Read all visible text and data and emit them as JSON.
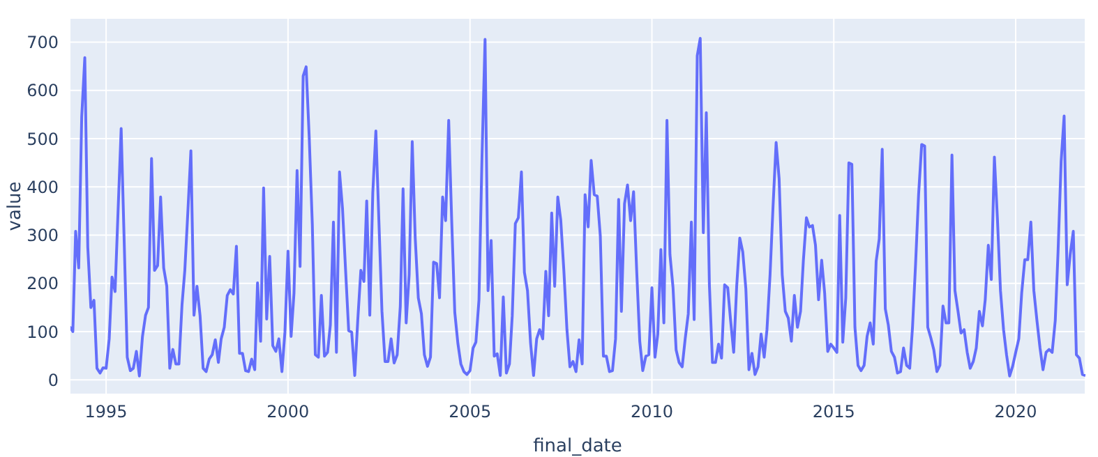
{
  "chart_data": {
    "type": "line",
    "xlabel": "final_date",
    "ylabel": "value",
    "x": [
      "1994-01",
      "1994-02",
      "1994-03",
      "1994-04",
      "1994-05",
      "1994-06",
      "1994-07",
      "1994-08",
      "1994-09",
      "1994-10",
      "1994-11",
      "1994-12",
      "1995-01",
      "1995-02",
      "1995-03",
      "1995-04",
      "1995-05",
      "1995-06",
      "1995-07",
      "1995-08",
      "1995-09",
      "1995-10",
      "1995-11",
      "1995-12",
      "1996-01",
      "1996-02",
      "1996-03",
      "1996-04",
      "1996-05",
      "1996-06",
      "1996-07",
      "1996-08",
      "1996-09",
      "1996-10",
      "1996-11",
      "1996-12",
      "1997-01",
      "1997-02",
      "1997-03",
      "1997-04",
      "1997-05",
      "1997-06",
      "1997-07",
      "1997-08",
      "1997-09",
      "1997-10",
      "1997-11",
      "1997-12",
      "1998-01",
      "1998-02",
      "1998-03",
      "1998-04",
      "1998-05",
      "1998-06",
      "1998-07",
      "1998-08",
      "1998-09",
      "1998-10",
      "1998-11",
      "1998-12",
      "1999-01",
      "1999-02",
      "1999-03",
      "1999-04",
      "1999-05",
      "1999-06",
      "1999-07",
      "1999-08",
      "1999-09",
      "1999-10",
      "1999-11",
      "1999-12",
      "2000-01",
      "2000-02",
      "2000-03",
      "2000-04",
      "2000-05",
      "2000-06",
      "2000-07",
      "2000-08",
      "2000-09",
      "2000-10",
      "2000-11",
      "2000-12",
      "2001-01",
      "2001-02",
      "2001-03",
      "2001-04",
      "2001-05",
      "2001-06",
      "2001-07",
      "2001-08",
      "2001-09",
      "2001-10",
      "2001-11",
      "2001-12",
      "2002-01",
      "2002-02",
      "2002-03",
      "2002-04",
      "2002-05",
      "2002-06",
      "2002-07",
      "2002-08",
      "2002-09",
      "2002-10",
      "2002-11",
      "2002-12",
      "2003-01",
      "2003-02",
      "2003-03",
      "2003-04",
      "2003-05",
      "2003-06",
      "2003-07",
      "2003-08",
      "2003-09",
      "2003-10",
      "2003-11",
      "2003-12",
      "2004-01",
      "2004-02",
      "2004-03",
      "2004-04",
      "2004-05",
      "2004-06",
      "2004-07",
      "2004-08",
      "2004-09",
      "2004-10",
      "2004-11",
      "2004-12",
      "2005-01",
      "2005-02",
      "2005-03",
      "2005-04",
      "2005-05",
      "2005-06",
      "2005-07",
      "2005-08",
      "2005-09",
      "2005-10",
      "2005-11",
      "2005-12",
      "2006-01",
      "2006-02",
      "2006-03",
      "2006-04",
      "2006-05",
      "2006-06",
      "2006-07",
      "2006-08",
      "2006-09",
      "2006-10",
      "2006-11",
      "2006-12",
      "2007-01",
      "2007-02",
      "2007-03",
      "2007-04",
      "2007-05",
      "2007-06",
      "2007-07",
      "2007-08",
      "2007-09",
      "2007-10",
      "2007-11",
      "2007-12",
      "2008-01",
      "2008-02",
      "2008-03",
      "2008-04",
      "2008-05",
      "2008-06",
      "2008-07",
      "2008-08",
      "2008-09",
      "2008-10",
      "2008-11",
      "2008-12",
      "2009-01",
      "2009-02",
      "2009-03",
      "2009-04",
      "2009-05",
      "2009-06",
      "2009-07",
      "2009-08",
      "2009-09",
      "2009-10",
      "2009-11",
      "2009-12",
      "2010-01",
      "2010-02",
      "2010-03",
      "2010-04",
      "2010-05",
      "2010-06",
      "2010-07",
      "2010-08",
      "2010-09",
      "2010-10",
      "2010-11",
      "2010-12",
      "2011-01",
      "2011-02",
      "2011-03",
      "2011-04",
      "2011-05",
      "2011-06",
      "2011-07",
      "2011-08",
      "2011-09",
      "2011-10",
      "2011-11",
      "2011-12",
      "2012-01",
      "2012-02",
      "2012-03",
      "2012-04",
      "2012-05",
      "2012-06",
      "2012-07",
      "2012-08",
      "2012-09",
      "2012-10",
      "2012-11",
      "2012-12",
      "2013-01",
      "2013-02",
      "2013-03",
      "2013-04",
      "2013-05",
      "2013-06",
      "2013-07",
      "2013-08",
      "2013-09",
      "2013-10",
      "2013-11",
      "2013-12",
      "2014-01",
      "2014-02",
      "2014-03",
      "2014-04",
      "2014-05",
      "2014-06",
      "2014-07",
      "2014-08",
      "2014-09",
      "2014-10",
      "2014-11",
      "2014-12",
      "2015-01",
      "2015-02",
      "2015-03",
      "2015-04",
      "2015-05",
      "2015-06",
      "2015-07",
      "2015-08",
      "2015-09",
      "2015-10",
      "2015-11",
      "2015-12",
      "2016-01",
      "2016-02",
      "2016-03",
      "2016-04",
      "2016-05",
      "2016-06",
      "2016-07",
      "2016-08",
      "2016-09",
      "2016-10",
      "2016-11",
      "2016-12",
      "2017-01",
      "2017-02",
      "2017-03",
      "2017-04",
      "2017-05",
      "2017-06",
      "2017-07",
      "2017-08",
      "2017-09",
      "2017-10",
      "2017-11",
      "2017-12",
      "2018-01",
      "2018-02",
      "2018-03",
      "2018-04",
      "2018-05",
      "2018-06",
      "2018-07",
      "2018-08",
      "2018-09",
      "2018-10",
      "2018-11",
      "2018-12",
      "2019-01",
      "2019-02",
      "2019-03",
      "2019-04",
      "2019-05",
      "2019-06",
      "2019-07",
      "2019-08",
      "2019-09",
      "2019-10",
      "2019-11",
      "2019-12",
      "2020-01",
      "2020-02",
      "2020-03",
      "2020-04",
      "2020-05",
      "2020-06",
      "2020-07",
      "2020-08",
      "2020-09",
      "2020-10",
      "2020-11",
      "2020-12",
      "2021-01",
      "2021-02",
      "2021-03",
      "2021-04",
      "2021-05",
      "2021-06",
      "2021-07",
      "2021-08",
      "2021-09",
      "2021-10",
      "2021-11",
      "2021-12"
    ],
    "series": [
      {
        "color": "#636efa",
        "values": [
          110,
          100,
          308,
          232,
          545,
          668,
          275,
          150,
          165,
          24,
          14,
          25,
          24,
          85,
          213,
          183,
          350,
          521,
          290,
          47,
          19,
          24,
          59,
          8,
          90,
          134,
          150,
          459,
          227,
          237,
          379,
          232,
          194,
          24,
          63,
          33,
          33,
          156,
          227,
          350,
          475,
          134,
          194,
          133,
          24,
          17,
          43,
          52,
          83,
          36,
          85,
          109,
          175,
          187,
          178,
          277,
          55,
          55,
          19,
          17,
          43,
          21,
          201,
          80,
          398,
          126,
          256,
          71,
          59,
          85,
          17,
          99,
          267,
          90,
          180,
          434,
          235,
          630,
          649,
          502,
          322,
          52,
          47,
          175,
          49,
          57,
          114,
          327,
          57,
          431,
          355,
          227,
          102,
          99,
          9,
          123,
          227,
          204,
          371,
          134,
          388,
          516,
          331,
          142,
          38,
          38,
          85,
          35,
          52,
          152,
          396,
          118,
          218,
          494,
          294,
          170,
          137,
          52,
          28,
          47,
          244,
          241,
          170,
          379,
          330,
          538,
          331,
          140,
          76,
          33,
          17,
          11,
          19,
          66,
          78,
          166,
          459,
          706,
          185,
          289,
          49,
          54,
          9,
          172,
          14,
          33,
          133,
          324,
          336,
          431,
          223,
          185,
          76,
          9,
          85,
          104,
          85,
          225,
          133,
          346,
          194,
          379,
          331,
          227,
          104,
          27,
          38,
          17,
          83,
          33,
          384,
          317,
          455,
          384,
          381,
          298,
          49,
          49,
          17,
          19,
          85,
          374,
          142,
          365,
          404,
          330,
          390,
          227,
          80,
          19,
          49,
          52,
          191,
          47,
          95,
          270,
          118,
          538,
          260,
          191,
          62,
          36,
          27,
          85,
          137,
          327,
          125,
          672,
          708,
          305,
          554,
          197,
          36,
          36,
          74,
          45,
          197,
          191,
          123,
          57,
          194,
          294,
          265,
          189,
          21,
          55,
          11,
          27,
          95,
          47,
          104,
          218,
          360,
          492,
          417,
          218,
          142,
          128,
          80,
          175,
          109,
          142,
          246,
          336,
          317,
          320,
          279,
          166,
          248,
          180,
          59,
          74,
          66,
          57,
          341,
          78,
          170,
          450,
          447,
          109,
          30,
          19,
          30,
          90,
          118,
          74,
          246,
          292,
          478,
          147,
          114,
          59,
          47,
          14,
          17,
          66,
          30,
          24,
          109,
          241,
          384,
          488,
          485,
          109,
          87,
          62,
          17,
          30,
          153,
          118,
          118,
          466,
          185,
          142,
          97,
          104,
          57,
          24,
          38,
          66,
          142,
          112,
          166,
          279,
          208,
          462,
          336,
          185,
          104,
          52,
          8,
          28,
          57,
          85,
          180,
          249,
          249,
          327,
          185,
          123,
          66,
          21,
          57,
          63,
          57,
          123,
          265,
          453,
          547,
          197,
          260,
          308,
          52,
          45,
          11,
          9
        ]
      }
    ],
    "xlim": [
      "1994-01",
      "2021-12"
    ],
    "xticks": [
      "1995",
      "2000",
      "2005",
      "2010",
      "2015",
      "2020"
    ],
    "ylim": [
      -30,
      750
    ],
    "yticks": [
      0,
      100,
      200,
      300,
      400,
      500,
      600,
      700
    ],
    "grid": true,
    "legend": false,
    "marker": "none",
    "line_style": "solid"
  }
}
